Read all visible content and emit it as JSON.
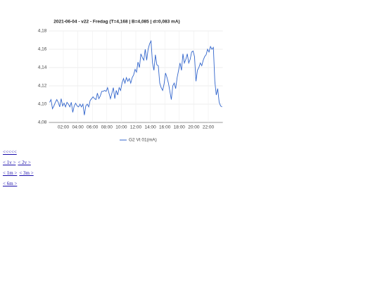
{
  "chart_data": {
    "type": "line",
    "title": "2021-06-04 - v22 - Fredag (T=4,168 | B=4,085 | d=0,083 mA)",
    "x": [
      0.1,
      0.3,
      0.5,
      0.7,
      0.9,
      1.1,
      1.3,
      1.5,
      1.7,
      1.9,
      2.1,
      2.3,
      2.5,
      2.7,
      2.9,
      3.1,
      3.3,
      3.5,
      3.7,
      3.9,
      4.1,
      4.3,
      4.5,
      4.7,
      4.9,
      5.1,
      5.3,
      5.5,
      5.7,
      5.9,
      6.1,
      6.3,
      6.5,
      6.7,
      6.9,
      7.1,
      7.3,
      7.5,
      7.7,
      7.9,
      8.1,
      8.3,
      8.5,
      8.7,
      8.9,
      9.1,
      9.3,
      9.5,
      9.7,
      9.9,
      10.1,
      10.3,
      10.5,
      10.7,
      10.9,
      11.1,
      11.3,
      11.5,
      11.7,
      11.9,
      12.1,
      12.3,
      12.5,
      12.7,
      12.9,
      13.1,
      13.3,
      13.5,
      13.7,
      13.9,
      14.1,
      14.3,
      14.5,
      14.7,
      14.9,
      15.1,
      15.3,
      15.5,
      15.7,
      15.9,
      16.1,
      16.3,
      16.5,
      16.7,
      16.9,
      17.1,
      17.3,
      17.5,
      17.7,
      17.9,
      18.1,
      18.3,
      18.5,
      18.7,
      18.9,
      19.1,
      19.3,
      19.5,
      19.7,
      19.9,
      20.1,
      20.3,
      20.5,
      20.7,
      20.9,
      21.1,
      21.3,
      21.5,
      21.7,
      21.9,
      22.1,
      22.3,
      22.5,
      22.7,
      22.9,
      23.1,
      23.3,
      23.5,
      23.7,
      23.9
    ],
    "series": [
      {
        "name": "G2 Vt 01(mA)",
        "color": "#3366cc",
        "values": [
          4.102,
          4.105,
          4.095,
          4.098,
          4.102,
          4.105,
          4.102,
          4.097,
          4.106,
          4.098,
          4.101,
          4.097,
          4.102,
          4.1,
          4.097,
          4.102,
          4.091,
          4.098,
          4.101,
          4.098,
          4.097,
          4.1,
          4.097,
          4.1,
          4.088,
          4.098,
          4.1,
          4.097,
          4.104,
          4.106,
          4.108,
          4.106,
          4.105,
          4.112,
          4.106,
          4.109,
          4.114,
          4.114,
          4.115,
          4.114,
          4.118,
          4.112,
          4.106,
          4.112,
          4.118,
          4.106,
          4.115,
          4.11,
          4.118,
          4.115,
          4.123,
          4.128,
          4.123,
          4.129,
          4.125,
          4.128,
          4.123,
          4.129,
          4.132,
          4.138,
          4.135,
          4.146,
          4.14,
          4.155,
          4.151,
          4.148,
          4.16,
          4.148,
          4.16,
          4.166,
          4.169,
          4.145,
          4.137,
          4.154,
          4.143,
          4.142,
          4.123,
          4.118,
          4.115,
          4.122,
          4.134,
          4.129,
          4.123,
          4.114,
          4.105,
          4.12,
          4.123,
          4.117,
          4.129,
          4.137,
          4.145,
          4.137,
          4.155,
          4.145,
          4.149,
          4.155,
          4.145,
          4.149,
          4.157,
          4.158,
          4.152,
          4.125,
          4.137,
          4.14,
          4.145,
          4.142,
          4.148,
          4.152,
          4.154,
          4.16,
          4.157,
          4.163,
          4.16,
          4.162,
          4.125,
          4.11,
          4.117,
          4.102,
          4.098,
          4.097
        ]
      }
    ],
    "xlim": [
      0,
      24
    ],
    "xticks": [
      {
        "value": 2,
        "label": "02:00"
      },
      {
        "value": 4,
        "label": "04:00"
      },
      {
        "value": 6,
        "label": "06:00"
      },
      {
        "value": 8,
        "label": "08:00"
      },
      {
        "value": 10,
        "label": "10:00"
      },
      {
        "value": 12,
        "label": "12:00"
      },
      {
        "value": 14,
        "label": "14:00"
      },
      {
        "value": 16,
        "label": "16:00"
      },
      {
        "value": 18,
        "label": "18:00"
      },
      {
        "value": 20,
        "label": "20:00"
      },
      {
        "value": 22,
        "label": "22:00"
      }
    ],
    "ylim": [
      4.08,
      4.18
    ],
    "yticks": [
      {
        "value": 4.08,
        "label": "4,08"
      },
      {
        "value": 4.1,
        "label": "4,10"
      },
      {
        "value": 4.12,
        "label": "4,12"
      },
      {
        "value": 4.14,
        "label": "4,14"
      },
      {
        "value": 4.16,
        "label": "4,16"
      },
      {
        "value": 4.18,
        "label": "4,18"
      }
    ],
    "grid": true,
    "legend": "bottom"
  },
  "nav": [
    [
      "<<<<<"
    ],
    [
      "< 1v >",
      "< 2v >"
    ],
    [
      "< 1m >",
      "< 3m >"
    ],
    [
      "< 6m >"
    ]
  ]
}
